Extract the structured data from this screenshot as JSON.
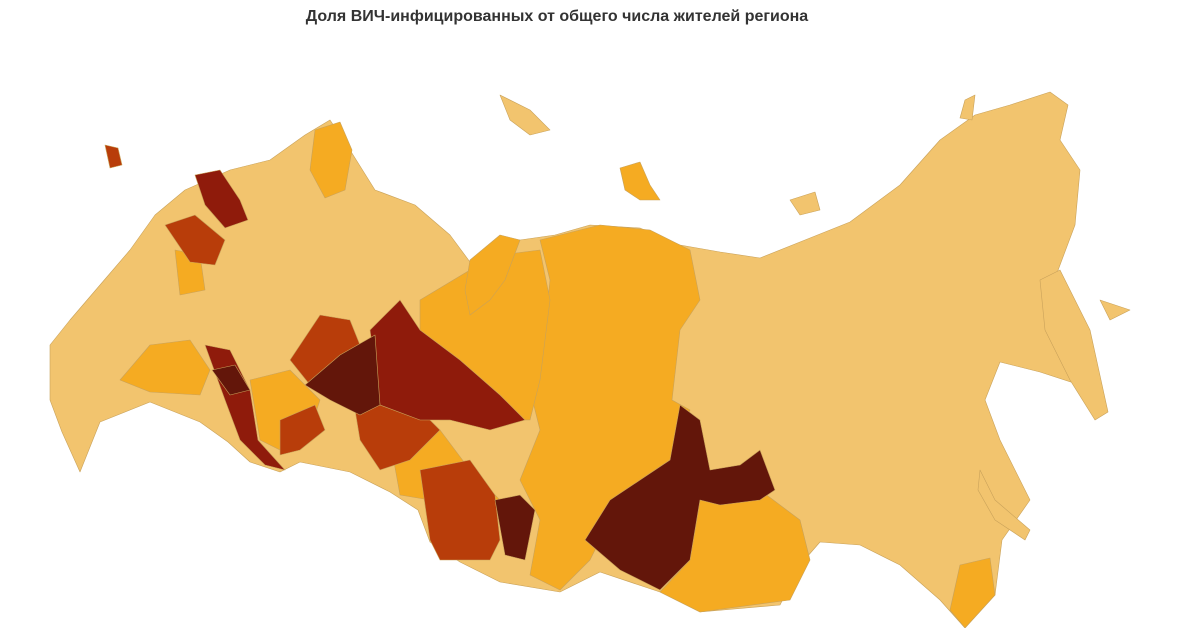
{
  "header": {
    "title": "Доля ВИЧ-инфицированных от общего числа жителей региона"
  }
}
